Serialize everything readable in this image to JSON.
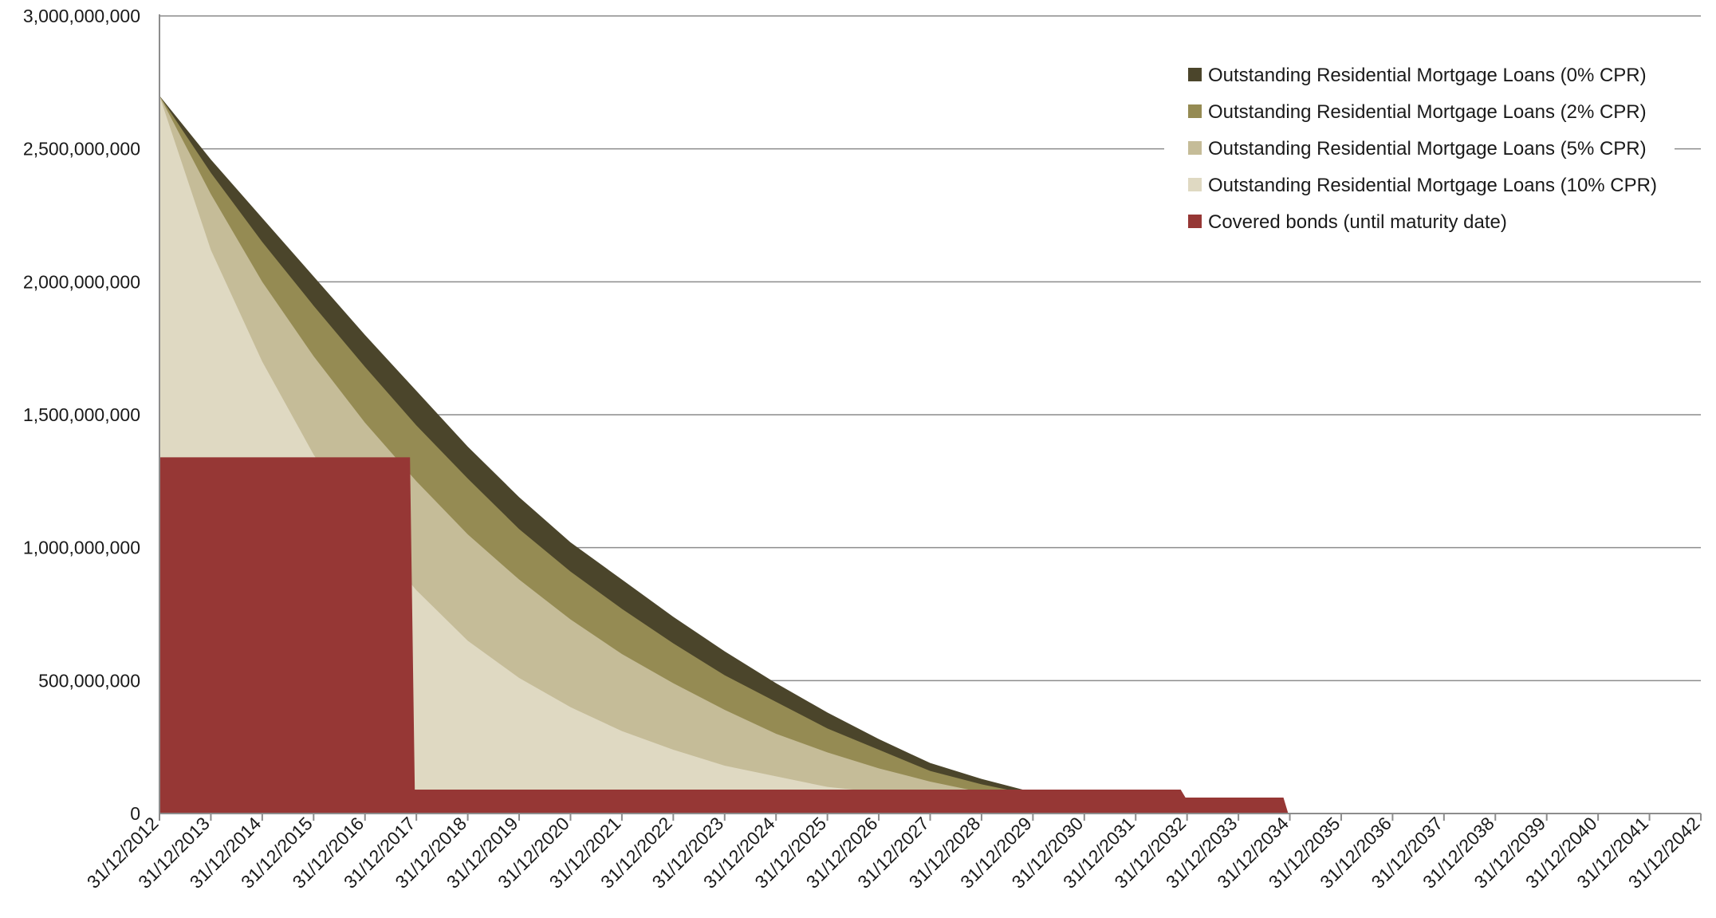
{
  "chart_data": {
    "type": "area",
    "title": "",
    "xlabel": "",
    "ylabel": "",
    "ylim": [
      0,
      3000000000
    ],
    "yticks": [
      0,
      500000000,
      1000000000,
      1500000000,
      2000000000,
      2500000000,
      3000000000
    ],
    "ytick_labels": [
      "0",
      "500,000,000",
      "1,000,000,000",
      "1,500,000,000",
      "2,000,000,000",
      "2,500,000,000",
      "3,000,000,000"
    ],
    "x_labels": [
      "31/12/2012",
      "31/12/2013",
      "31/12/2014",
      "31/12/2015",
      "31/12/2016",
      "31/12/2017",
      "31/12/2018",
      "31/12/2019",
      "31/12/2020",
      "31/12/2021",
      "31/12/2022",
      "31/12/2023",
      "31/12/2024",
      "31/12/2025",
      "31/12/2026",
      "31/12/2027",
      "31/12/2028",
      "31/12/2029",
      "31/12/2030",
      "31/12/2031",
      "31/12/2032",
      "31/12/2033",
      "31/12/2034",
      "31/12/2035",
      "31/12/2036",
      "31/12/2037",
      "31/12/2038",
      "31/12/2039",
      "31/12/2040",
      "31/12/2041",
      "31/12/2042"
    ],
    "x": [
      "31/12/2012",
      "31/12/2013",
      "31/12/2014",
      "31/12/2015",
      "31/12/2016",
      "31/12/2017",
      "31/12/2018",
      "31/12/2019",
      "31/12/2020",
      "31/12/2021",
      "31/12/2022",
      "31/12/2023",
      "31/12/2024",
      "31/12/2025",
      "31/12/2026",
      "31/12/2027",
      "31/12/2028",
      "31/12/2029",
      "31/12/2030",
      "31/12/2031",
      "31/12/2032",
      "31/12/2033",
      "31/12/2034",
      "31/12/2035",
      "31/12/2036",
      "31/12/2037",
      "31/12/2038",
      "31/12/2039",
      "31/12/2040",
      "31/12/2041"
    ],
    "grid": true,
    "legend_position": "top-right",
    "series": [
      {
        "name": "Outstanding Residential Mortgage Loans (0% CPR)",
        "color": "#4b452b",
        "kind": "area",
        "values": [
          2700000000,
          2460000000,
          2240000000,
          2020000000,
          1800000000,
          1590000000,
          1380000000,
          1190000000,
          1020000000,
          880000000,
          740000000,
          610000000,
          490000000,
          380000000,
          280000000,
          190000000,
          130000000,
          80000000,
          40000000,
          10000000,
          0,
          0,
          0,
          0,
          0,
          0,
          0,
          0,
          0,
          0
        ]
      },
      {
        "name": "Outstanding Residential Mortgage Loans (2% CPR)",
        "color": "#958b53",
        "kind": "area",
        "values": [
          2700000000,
          2410000000,
          2150000000,
          1910000000,
          1680000000,
          1460000000,
          1260000000,
          1070000000,
          910000000,
          770000000,
          640000000,
          520000000,
          420000000,
          320000000,
          240000000,
          160000000,
          110000000,
          70000000,
          40000000,
          10000000,
          0,
          0,
          0,
          0,
          0,
          0,
          0,
          0,
          0,
          0
        ]
      },
      {
        "name": "Outstanding Residential Mortgage Loans (5% CPR)",
        "color": "#c5bc98",
        "kind": "area",
        "values": [
          2700000000,
          2330000000,
          2000000000,
          1720000000,
          1470000000,
          1250000000,
          1050000000,
          880000000,
          730000000,
          600000000,
          490000000,
          390000000,
          300000000,
          230000000,
          170000000,
          120000000,
          80000000,
          50000000,
          30000000,
          10000000,
          0,
          0,
          0,
          0,
          0,
          0,
          0,
          0,
          0,
          0
        ]
      },
      {
        "name": "Outstanding Residential Mortgage Loans (10% CPR)",
        "color": "#dfd9c2",
        "kind": "area",
        "values": [
          2700000000,
          2120000000,
          1700000000,
          1350000000,
          1070000000,
          840000000,
          650000000,
          510000000,
          400000000,
          310000000,
          240000000,
          180000000,
          140000000,
          100000000,
          80000000,
          50000000,
          30000000,
          20000000,
          10000000,
          0,
          0,
          0,
          0,
          0,
          0,
          0,
          0,
          0,
          0,
          0
        ]
      },
      {
        "name": "Covered bonds (until maturity date)",
        "color": "#963735",
        "kind": "step",
        "values": [
          1340000000,
          1340000000,
          1340000000,
          1340000000,
          1340000000,
          90000000,
          90000000,
          90000000,
          90000000,
          90000000,
          90000000,
          90000000,
          90000000,
          90000000,
          90000000,
          90000000,
          90000000,
          90000000,
          90000000,
          90000000,
          60000000,
          60000000,
          0,
          0,
          0,
          0,
          0,
          0,
          0,
          0
        ]
      }
    ]
  }
}
